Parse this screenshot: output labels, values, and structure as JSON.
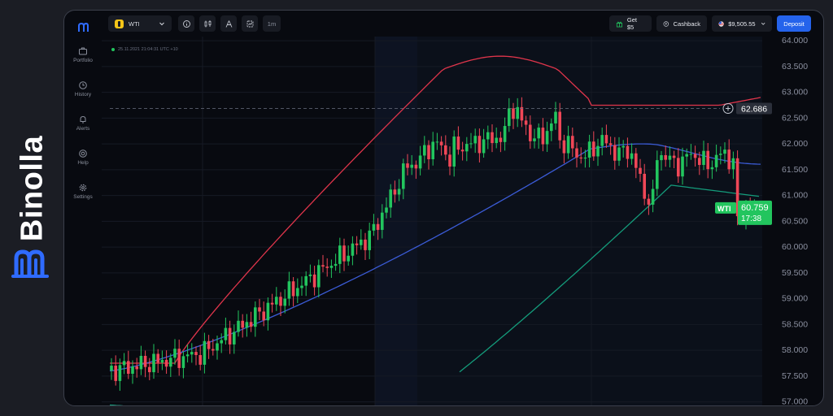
{
  "brand": {
    "name": "Binolla"
  },
  "sidebar": {
    "items": [
      {
        "label": "Portfolio",
        "icon": "briefcase-icon"
      },
      {
        "label": "History",
        "icon": "history-icon"
      },
      {
        "label": "Alerts",
        "icon": "bell-icon"
      },
      {
        "label": "Help",
        "icon": "help-icon"
      },
      {
        "label": "Settings",
        "icon": "gear-icon"
      }
    ]
  },
  "toolbar": {
    "asset": "WTI",
    "timeframe": "1m",
    "get_bonus": "Get $5",
    "cashback": "Cashback",
    "balance": "$9,505.55",
    "deposit": "Deposit"
  },
  "chart": {
    "timestamp": "25.11.2021  21:04:31  UTC +10",
    "price_axis": [
      "64.000",
      "63.500",
      "63.000",
      "62.500",
      "62.000",
      "61.500",
      "61.000",
      "60.500",
      "60.000",
      "59.500",
      "59.000",
      "58.500",
      "58.000",
      "57.500",
      "57.000"
    ],
    "crosshair_price": "62.686",
    "current_label": "WTI",
    "current_price": "60.759",
    "countdown": "17:38",
    "colors": {
      "up": "#22c55e",
      "down": "#ef4757",
      "upper_band": "#e0354b",
      "middle_band": "#3b5bd6",
      "lower_band": "#149c7b"
    }
  },
  "chart_data": {
    "type": "candlestick",
    "ylim": [
      56.9,
      64.08
    ],
    "ytick_step": 0.5,
    "candles": [],
    "crosshair_price": 62.686,
    "current_price": 60.759
  }
}
